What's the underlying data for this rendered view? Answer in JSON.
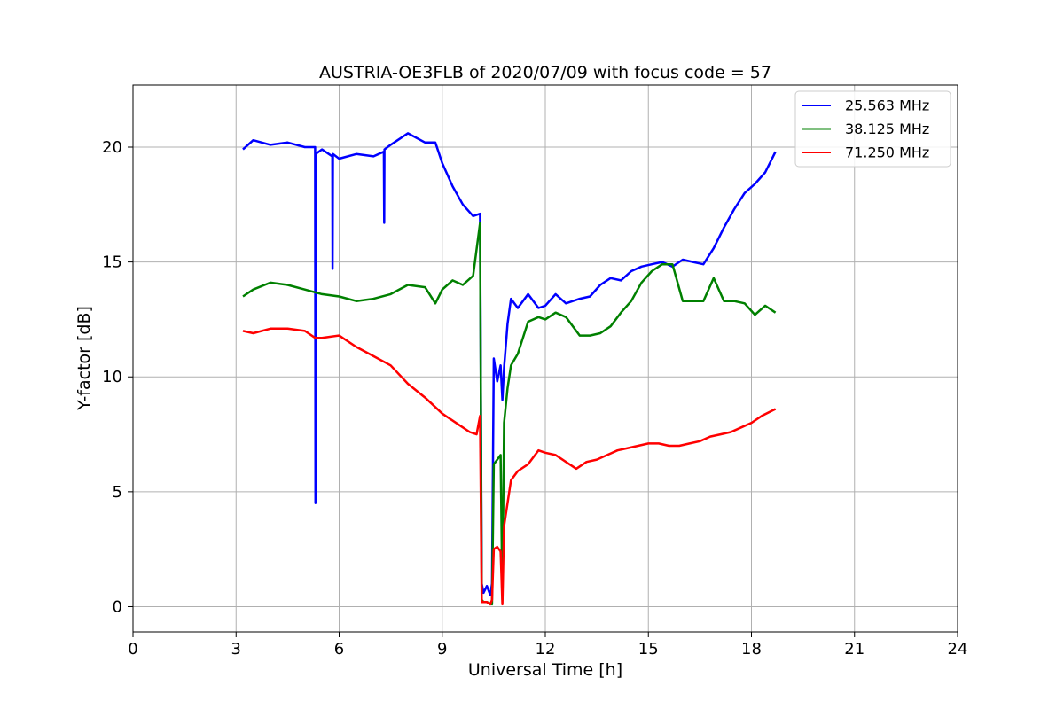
{
  "chart_data": {
    "type": "line",
    "title": "AUSTRIA-OE3FLB of 2020/07/09 with focus code = 57",
    "xlabel": "Universal Time [h]",
    "ylabel": "Y-factor [dB]",
    "xlim": [
      0,
      24
    ],
    "ylim": [
      -1.1,
      22.7
    ],
    "xticks": [
      0,
      3,
      6,
      9,
      12,
      15,
      18,
      21,
      24
    ],
    "xtick_labels": [
      "0",
      "3",
      "6",
      "9",
      "12",
      "15",
      "18",
      "21",
      "24"
    ],
    "yticks": [
      0,
      5,
      10,
      15,
      20
    ],
    "ytick_labels": [
      "0",
      "5",
      "10",
      "15",
      "20"
    ],
    "grid": true,
    "legend_position": "top-right",
    "series": [
      {
        "name": "25.563 MHz",
        "color": "#0000ff",
        "x": [
          3.2,
          3.5,
          4.0,
          4.5,
          5.0,
          5.3,
          5.31,
          5.32,
          5.5,
          5.8,
          5.81,
          5.82,
          6.0,
          6.5,
          7.0,
          7.3,
          7.31,
          7.32,
          7.5,
          8.0,
          8.5,
          8.8,
          9.0,
          9.3,
          9.6,
          9.9,
          10.1,
          10.15,
          10.2,
          10.3,
          10.4,
          10.45,
          10.5,
          10.6,
          10.7,
          10.75,
          10.8,
          10.9,
          11.0,
          11.2,
          11.5,
          11.8,
          12.0,
          12.3,
          12.6,
          13.0,
          13.3,
          13.6,
          13.9,
          14.2,
          14.5,
          14.8,
          15.1,
          15.4,
          15.7,
          16.0,
          16.3,
          16.6,
          16.9,
          17.2,
          17.5,
          17.8,
          18.1,
          18.4,
          18.7
        ],
        "y": [
          19.9,
          20.3,
          20.1,
          20.2,
          20.0,
          20.0,
          4.5,
          19.7,
          19.9,
          19.6,
          14.7,
          19.7,
          19.5,
          19.7,
          19.6,
          19.8,
          16.7,
          19.9,
          20.1,
          20.6,
          20.2,
          20.2,
          19.3,
          18.3,
          17.5,
          17.0,
          17.1,
          1.0,
          0.6,
          0.9,
          0.5,
          1.0,
          10.8,
          9.8,
          10.5,
          9.0,
          10.4,
          12.3,
          13.4,
          13.0,
          13.6,
          13.0,
          13.1,
          13.6,
          13.2,
          13.4,
          13.5,
          14.0,
          14.3,
          14.2,
          14.6,
          14.8,
          14.9,
          15.0,
          14.8,
          15.1,
          15.0,
          14.9,
          15.6,
          16.5,
          17.3,
          18.0,
          18.4,
          18.9,
          19.8
        ]
      },
      {
        "name": "38.125 MHz",
        "color": "#008000",
        "x": [
          3.2,
          3.5,
          4.0,
          4.5,
          5.0,
          5.5,
          6.0,
          6.5,
          7.0,
          7.5,
          8.0,
          8.5,
          8.8,
          9.0,
          9.3,
          9.6,
          9.9,
          10.1,
          10.15,
          10.2,
          10.3,
          10.45,
          10.5,
          10.6,
          10.7,
          10.75,
          10.8,
          10.9,
          11.0,
          11.2,
          11.5,
          11.8,
          12.0,
          12.3,
          12.6,
          13.0,
          13.3,
          13.6,
          13.9,
          14.2,
          14.5,
          14.8,
          15.1,
          15.4,
          15.7,
          16.0,
          16.3,
          16.6,
          16.9,
          17.2,
          17.5,
          17.8,
          18.1,
          18.4,
          18.7
        ],
        "y": [
          13.5,
          13.8,
          14.1,
          14.0,
          13.8,
          13.6,
          13.5,
          13.3,
          13.4,
          13.6,
          14.0,
          13.9,
          13.2,
          13.8,
          14.2,
          14.0,
          14.4,
          16.7,
          0.3,
          0.2,
          0.2,
          0.1,
          6.2,
          6.4,
          6.6,
          0.3,
          8.0,
          9.5,
          10.5,
          11.0,
          12.4,
          12.6,
          12.5,
          12.8,
          12.6,
          11.8,
          11.8,
          11.9,
          12.2,
          12.8,
          13.3,
          14.1,
          14.6,
          14.9,
          14.9,
          13.3,
          13.3,
          13.3,
          14.3,
          13.3,
          13.3,
          13.2,
          12.7,
          13.1,
          12.8
        ]
      },
      {
        "name": "71.250 MHz",
        "color": "#ff0000",
        "x": [
          3.2,
          3.5,
          4.0,
          4.5,
          5.0,
          5.3,
          5.5,
          6.0,
          6.5,
          7.0,
          7.5,
          8.0,
          8.5,
          9.0,
          9.5,
          9.8,
          10.0,
          10.1,
          10.15,
          10.2,
          10.3,
          10.4,
          10.45,
          10.5,
          10.6,
          10.7,
          10.75,
          10.8,
          10.9,
          11.0,
          11.2,
          11.5,
          11.8,
          12.0,
          12.3,
          12.6,
          12.9,
          13.2,
          13.5,
          13.8,
          14.1,
          14.4,
          14.7,
          15.0,
          15.3,
          15.6,
          15.9,
          16.2,
          16.5,
          16.8,
          17.1,
          17.4,
          17.7,
          18.0,
          18.3,
          18.7
        ],
        "y": [
          12.0,
          11.9,
          12.1,
          12.1,
          12.0,
          11.7,
          11.7,
          11.8,
          11.3,
          10.9,
          10.5,
          9.7,
          9.1,
          8.4,
          7.9,
          7.6,
          7.5,
          8.3,
          0.2,
          0.2,
          0.2,
          0.1,
          0.3,
          2.5,
          2.6,
          2.4,
          0.1,
          3.5,
          4.5,
          5.5,
          5.9,
          6.2,
          6.8,
          6.7,
          6.6,
          6.3,
          6.0,
          6.3,
          6.4,
          6.6,
          6.8,
          6.9,
          7.0,
          7.1,
          7.1,
          7.0,
          7.0,
          7.1,
          7.2,
          7.4,
          7.5,
          7.6,
          7.8,
          8.0,
          8.3,
          8.6
        ]
      }
    ]
  }
}
